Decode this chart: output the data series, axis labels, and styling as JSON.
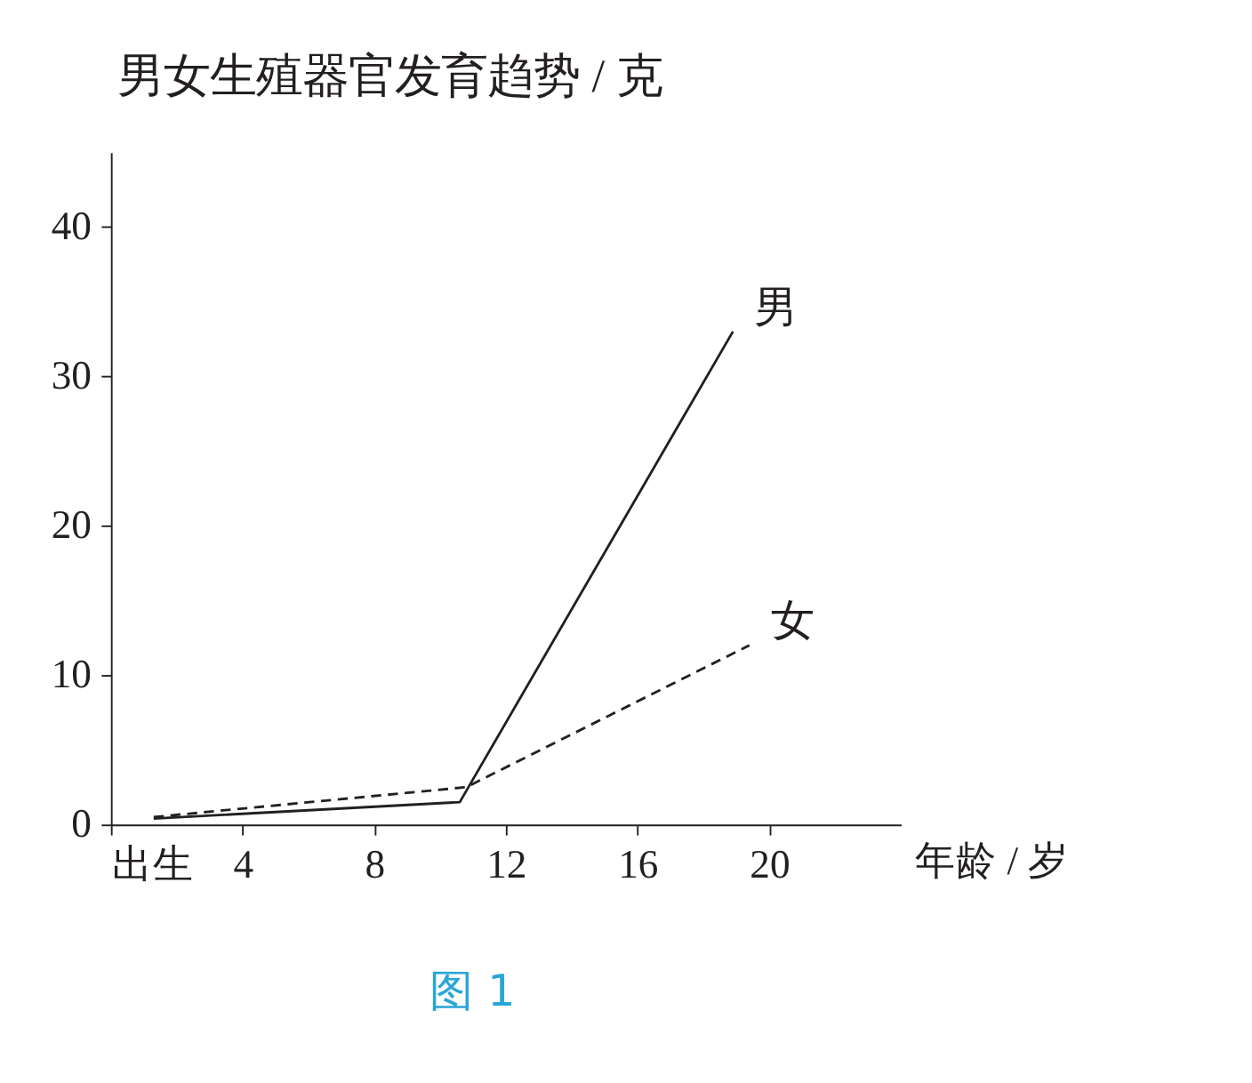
{
  "chart_data": {
    "type": "line",
    "title": "男女生殖器官发育趋势 / 克",
    "xlabel": "年龄 / 岁",
    "series": [
      {
        "name": "男",
        "color": "#231f20",
        "line_style": "solid",
        "x": [
          1.3,
          10.6,
          18.9
        ],
        "values": [
          0.4,
          1.5,
          33
        ]
      },
      {
        "name": "女",
        "color": "#231f20",
        "line_style": "dashed",
        "x": [
          1.3,
          10.8,
          19.4
        ],
        "values": [
          0.5,
          2.5,
          12
        ]
      }
    ],
    "xlim": [
      0,
      24
    ],
    "xticks": [
      {
        "value": 0,
        "label": "出生"
      },
      4,
      8,
      12,
      16,
      20
    ],
    "ylim": [
      0,
      45
    ],
    "yticks": [
      0,
      10,
      20,
      30,
      40
    ],
    "grid": false,
    "marker": "none",
    "annotations": [
      "图 1"
    ]
  }
}
